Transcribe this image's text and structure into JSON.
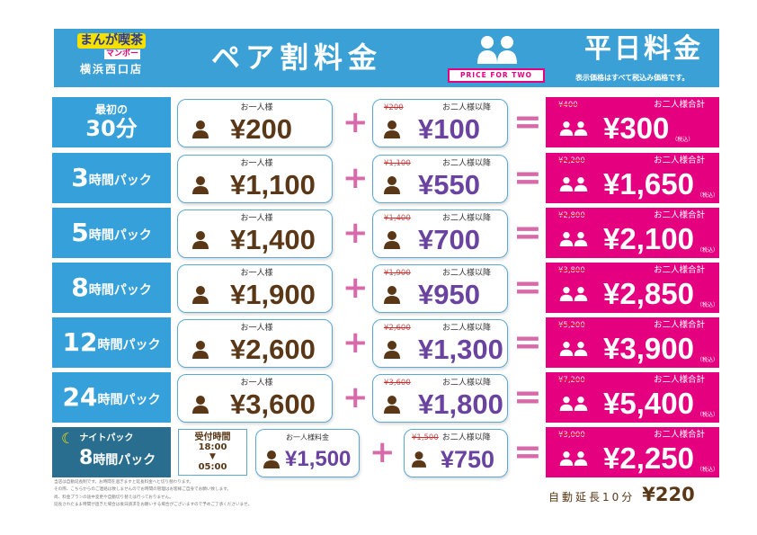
{
  "header": {
    "logo_name": "まんが喫茶",
    "logo_sub": "マンボー",
    "store": "横浜西口店",
    "title": "ペア割料金",
    "price_for_two": "PRICE FOR TWO",
    "weekday": "平日料金",
    "tax_note": "表示価格はすべて税込み価格です。"
  },
  "labels": {
    "single": "お一人様",
    "second": "お二人様以降",
    "total": "お二人様合計",
    "tax": "（税込）"
  },
  "rows": [
    {
      "pre": "最初の",
      "big": "30分",
      "small": "",
      "single": "¥200",
      "old_second": "¥200",
      "second": "¥100",
      "old_total": "¥400",
      "total": "¥300"
    },
    {
      "pre": "",
      "big": "3",
      "small": "時間パック",
      "single": "¥1,100",
      "old_second": "¥1,100",
      "second": "¥550",
      "old_total": "¥2,200",
      "total": "¥1,650"
    },
    {
      "pre": "",
      "big": "5",
      "small": "時間パック",
      "single": "¥1,400",
      "old_second": "¥1,400",
      "second": "¥700",
      "old_total": "¥2,800",
      "total": "¥2,100"
    },
    {
      "pre": "",
      "big": "8",
      "small": "時間パック",
      "single": "¥1,900",
      "old_second": "¥1,900",
      "second": "¥950",
      "old_total": "¥3,800",
      "total": "¥2,850"
    },
    {
      "pre": "",
      "big": "12",
      "small": "時間パック",
      "single": "¥2,600",
      "old_second": "¥2,600",
      "second": "¥1,300",
      "old_total": "¥5,200",
      "total": "¥3,900"
    },
    {
      "pre": "",
      "big": "24",
      "small": "時間パック",
      "single": "¥3,600",
      "old_second": "¥3,600",
      "second": "¥1,800",
      "old_total": "¥7,200",
      "total": "¥5,400"
    }
  ],
  "night": {
    "title": "ナイトパック",
    "big": "8",
    "small": "時間パック",
    "reception_label": "受付時間",
    "start": "18:00",
    "arrow": "▼",
    "end": "05:00",
    "single_label": "お一人様料金",
    "single": "¥1,500",
    "old_second": "¥1,500",
    "second_label": "お二人様以降",
    "second": "¥750",
    "old_total": "¥3,000",
    "total_label": "お二人様合計",
    "total": "¥2,250"
  },
  "notes": [
    "当店は自動延長制です。お時間を過ぎますと延長料金へと切り替わります。",
    "その際、こちらからのご連絡は致しませんのでお時間の管理はお客様ご自身でお願い致します。",
    "尚、料金プランの途中変更や自動切り替えは行っておりません。",
    "延長されたまま時間が過ぎた場合は後日請求をお願いする場合がございますので予めご了承くださいませ。"
  ],
  "extension": {
    "label": "自動延長10分",
    "price": "¥220"
  },
  "colors": {
    "blue": "#35a0d9",
    "pink": "#e4007f",
    "brown": "#5a3716",
    "purple": "#6a43a0",
    "night": "#296e8f"
  }
}
